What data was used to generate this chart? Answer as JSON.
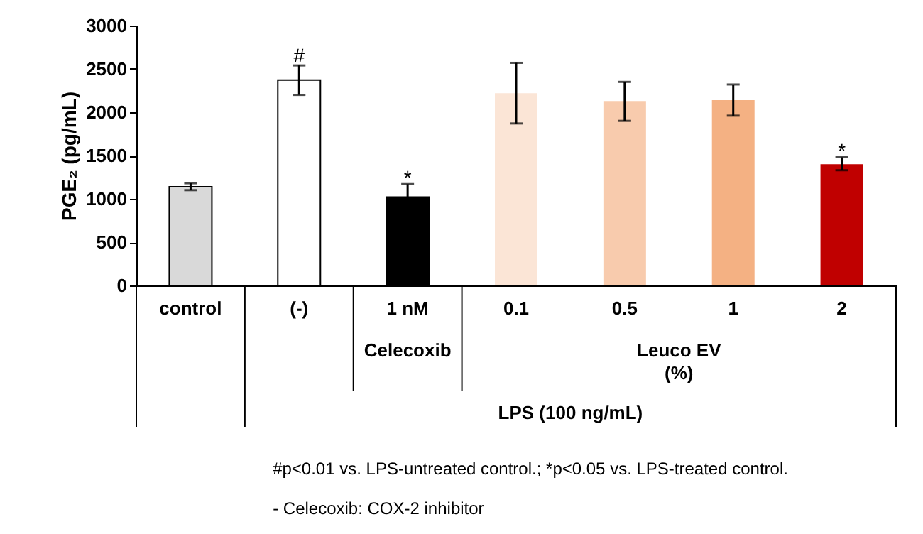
{
  "chart_data": {
    "type": "bar",
    "ylabel": "PGE₂ (pg/mL)",
    "categories": [
      "control",
      "(-)",
      "1 nM",
      "0.1",
      "0.5",
      "1",
      "2"
    ],
    "values": [
      1140,
      2370,
      1020,
      2220,
      2130,
      2140,
      1400
    ],
    "errors": [
      40,
      [
        2200,
        2540
      ],
      150,
      [
        1870,
        2570
      ],
      [
        1900,
        2350
      ],
      [
        1960,
        2320
      ],
      [
        1330,
        1480
      ]
    ],
    "colors": [
      "#d9d9d9",
      "#ffffff",
      "#000000",
      "#fbe5d6",
      "#f8cbad",
      "#f4b183",
      "#c00000"
    ],
    "ylim": [
      0,
      3000
    ],
    "yticks": [
      0,
      500,
      1000,
      1500,
      2000,
      2500,
      3000
    ],
    "grid": false,
    "annotations": [
      {
        "text": "#",
        "x": "(-)",
        "y": 2640
      },
      {
        "text": "*",
        "x": "1 nM",
        "y": 1230
      },
      {
        "text": "*",
        "x": "2",
        "y": 1540
      },
      "Celecoxib",
      "Leuco EV\n(%)",
      "LPS (100 ng/mL)",
      "#p<0.01 vs. LPS-untreated control.; *p<0.05 vs. LPS-treated control.",
      "- Celecoxib: COX-2 inhibitor"
    ]
  }
}
